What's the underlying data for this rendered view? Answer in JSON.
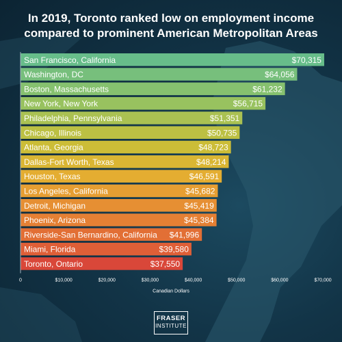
{
  "title": "In 2019, Toronto ranked low on employment income compared to prominent American Metropolitan Areas",
  "logo": {
    "line1": "FRASER",
    "line2": "INSTITUTE"
  },
  "chart_data": {
    "type": "bar",
    "orientation": "horizontal",
    "title": "In 2019, Toronto ranked low on employment income compared to prominent American Metropolitan Areas",
    "xlabel": "Canadian Dollars",
    "ylabel": "",
    "xlim": [
      0,
      70000
    ],
    "xticks": [
      "0",
      "$10,000",
      "$20,000",
      "$30,000",
      "$40,000",
      "$50,000",
      "$60,000",
      "$70,000"
    ],
    "grid": false,
    "categories": [
      "San Francisco, California",
      "Washington, DC",
      "Boston, Massachusetts",
      "New York, New York",
      "Philadelphia, Pennsylvania",
      "Chicago, Illinois",
      "Atlanta, Georgia",
      "Dallas-Fort Worth, Texas",
      "Houston, Texas",
      "Los Angeles, California",
      "Detroit, Michigan",
      "Phoenix, Arizona",
      "Riverside-San Bernardino, California",
      "Miami, Florida",
      "Toronto, Ontario"
    ],
    "values": [
      70315,
      64056,
      61232,
      56715,
      51351,
      50735,
      48723,
      48214,
      46591,
      45682,
      45419,
      45384,
      41996,
      39580,
      37550
    ],
    "value_labels": [
      "$70,315",
      "$64,056",
      "$61,232",
      "$56,715",
      "$51,351",
      "$50,735",
      "$48,723",
      "$48,214",
      "$46,591",
      "$45,682",
      "$45,419",
      "$45,384",
      "$41,996",
      "$39,580",
      "$37,550"
    ],
    "colors": [
      "#67bd8a",
      "#77bf7c",
      "#86c16f",
      "#98c25f",
      "#aac152",
      "#bcc043",
      "#ccbd37",
      "#dab633",
      "#e4ad31",
      "#e69e32",
      "#e68f33",
      "#e58034",
      "#e26f35",
      "#df5f37",
      "#d94739"
    ]
  }
}
